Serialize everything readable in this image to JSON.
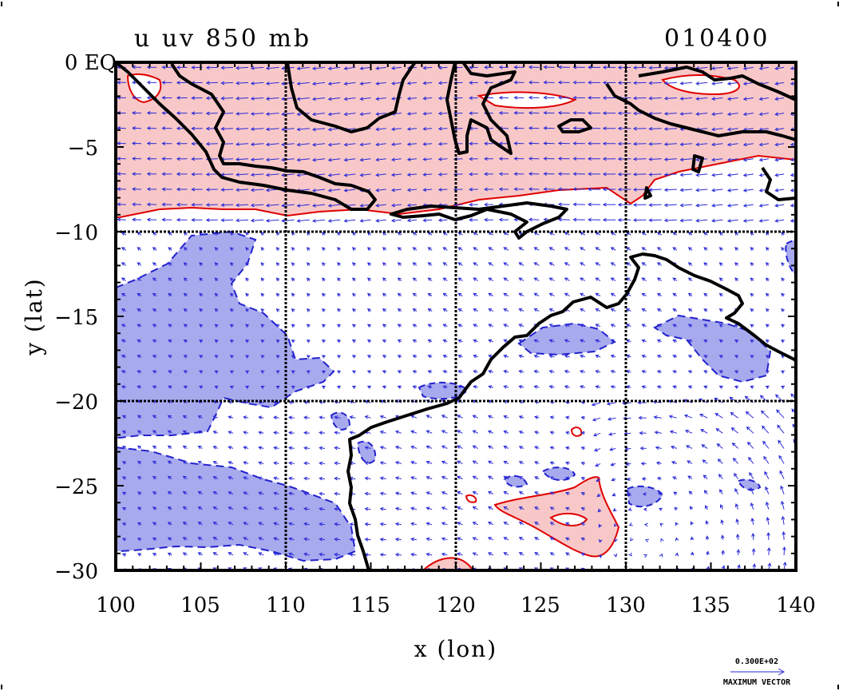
{
  "title": "u uv 850 mb",
  "timestamp": "010400",
  "axes": {
    "x_label": "x (lon)",
    "y_label": "y (lat)",
    "x_ticks": [
      "100",
      "105",
      "110",
      "115",
      "120",
      "125",
      "130",
      "135",
      "140"
    ],
    "y_ticks": [
      "0 EQ",
      "−5",
      "−10",
      "−15",
      "−20",
      "−25",
      "−30"
    ]
  },
  "legend": {
    "value": "0.300E+02",
    "label": "MAXIMUM VECTOR"
  },
  "chart_data": {
    "type": "map",
    "xlim": [
      100,
      140
    ],
    "ylim": [
      -30,
      0
    ],
    "grid_lon": [
      110,
      120,
      130
    ],
    "grid_lat": [
      -10,
      -20
    ],
    "positive_color": "#f8c8c8",
    "negative_color": "#a8aaee",
    "contour_positive_color": "#e00000",
    "contour_negative_color": "#2222cc",
    "vector_color": "#2a2ad8",
    "coast_color": "#000000"
  }
}
